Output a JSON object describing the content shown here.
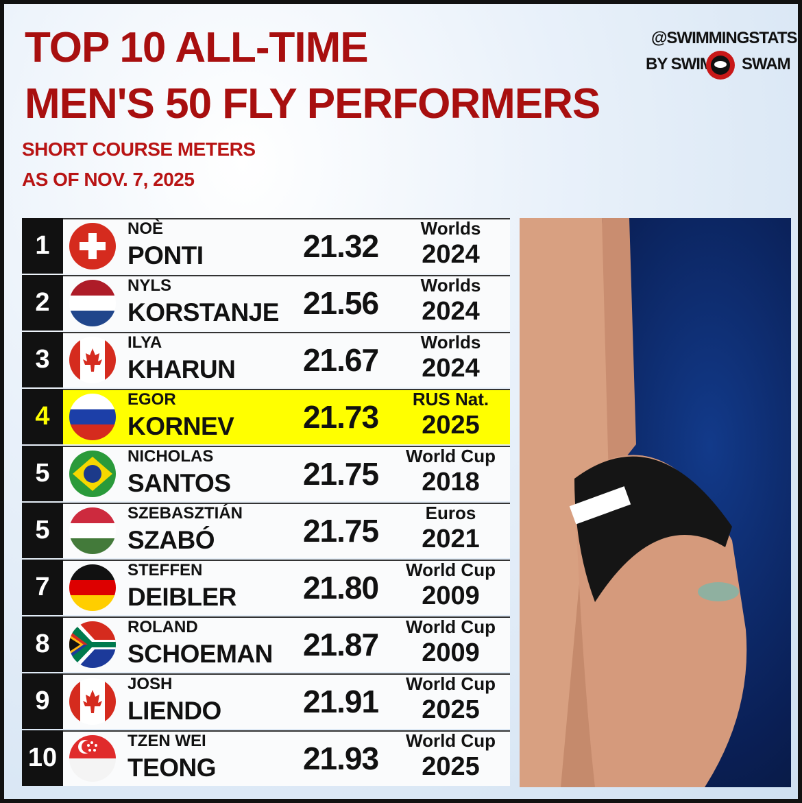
{
  "header": {
    "title_line1": "TOP 10 ALL-TIME",
    "title_line2": "MEN'S 50 FLY PERFORMERS",
    "subtitle_line1": "SHORT COURSE METERS",
    "subtitle_line2": "AS OF NOV. 7, 2025"
  },
  "brand": {
    "handle": "@SWIMMINGSTATS",
    "by": "BY SWIM",
    "swam": "SWAM"
  },
  "table": {
    "rows": [
      {
        "rank": "1",
        "first_name": "NOÈ",
        "last_name": "PONTI",
        "time": "21.32",
        "meet": "Worlds",
        "year": "2024"
      },
      {
        "rank": "2",
        "first_name": "NYLS",
        "last_name": "KORSTANJE",
        "time": "21.56",
        "meet": "Worlds",
        "year": "2024"
      },
      {
        "rank": "3",
        "first_name": "ILYA",
        "last_name": "KHARUN",
        "time": "21.67",
        "meet": "Worlds",
        "year": "2024"
      },
      {
        "rank": "4",
        "first_name": "EGOR",
        "last_name": "KORNEV",
        "time": "21.73",
        "meet": "RUS Nat.",
        "year": "2025"
      },
      {
        "rank": "5",
        "first_name": "NICHOLAS",
        "last_name": "SANTOS",
        "time": "21.75",
        "meet": "World Cup",
        "year": "2018"
      },
      {
        "rank": "5",
        "first_name": "SZEBASZTIÁN",
        "last_name": "SZABÓ",
        "time": "21.75",
        "meet": "Euros",
        "year": "2021"
      },
      {
        "rank": "7",
        "first_name": "STEFFEN",
        "last_name": "DEIBLER",
        "time": "21.80",
        "meet": "World Cup",
        "year": "2009"
      },
      {
        "rank": "8",
        "first_name": "ROLAND",
        "last_name": "SCHOEMAN",
        "time": "21.87",
        "meet": "World Cup",
        "year": "2009"
      },
      {
        "rank": "9",
        "first_name": "JOSH",
        "last_name": "LIENDO",
        "time": "21.91",
        "meet": "World Cup",
        "year": "2025"
      },
      {
        "rank": "10",
        "first_name": "TZEN WEI",
        "last_name": "TEONG",
        "time": "21.93",
        "meet": "World Cup",
        "year": "2025"
      }
    ]
  }
}
